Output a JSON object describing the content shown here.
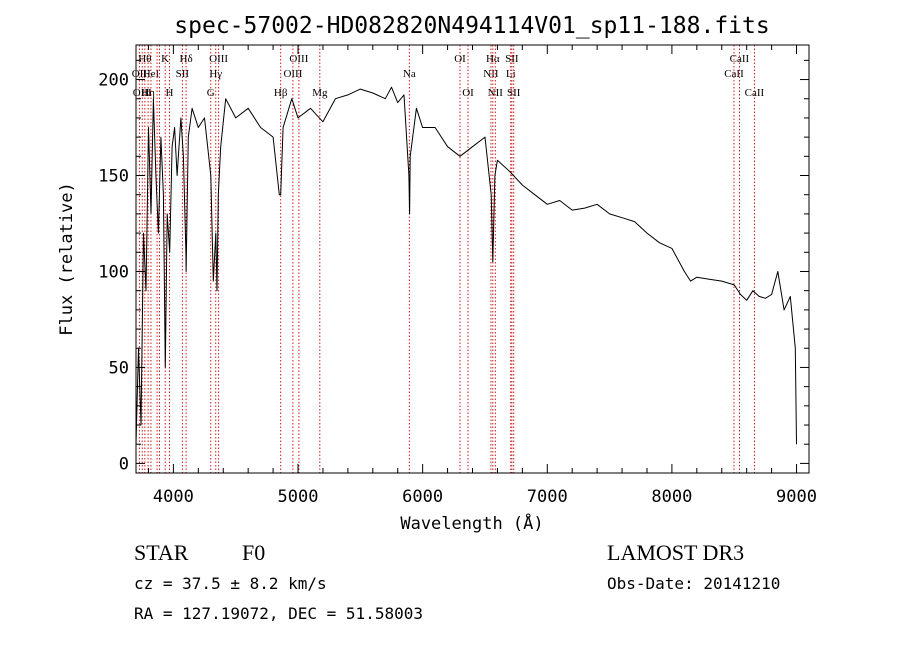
{
  "chart_data": {
    "type": "line",
    "title": "spec-57002-HD082820N494114V01_sp11-188.fits",
    "xlabel": "Wavelength (Å)",
    "ylabel": "Flux (relative)",
    "xlim": [
      3700,
      9100
    ],
    "ylim": [
      -5,
      218
    ],
    "xticks": [
      4000,
      5000,
      6000,
      7000,
      8000,
      9000
    ],
    "yticks": [
      0,
      50,
      100,
      150,
      200
    ],
    "grid": false,
    "line_color": "#000000",
    "marker_color": "#cc0000",
    "series": [
      {
        "x": [
          3700,
          3720,
          3740,
          3760,
          3780,
          3800,
          3820,
          3840,
          3860,
          3880,
          3900,
          3920,
          3935,
          3950,
          3970,
          3990,
          4010,
          4030,
          4060,
          4080,
          4100,
          4102,
          4120,
          4150,
          4200,
          4250,
          4300,
          4320,
          4340,
          4350,
          4360,
          4380,
          4420,
          4500,
          4600,
          4700,
          4800,
          4850,
          4861,
          4880,
          4950,
          5000,
          5100,
          5200,
          5300,
          5400,
          5500,
          5600,
          5700,
          5750,
          5800,
          5850,
          5890,
          5895,
          5900,
          5950,
          6000,
          6100,
          6200,
          6300,
          6400,
          6500,
          6550,
          6563,
          6580,
          6600,
          6700,
          6800,
          6900,
          7000,
          7100,
          7200,
          7300,
          7400,
          7500,
          7600,
          7700,
          7800,
          7900,
          8000,
          8100,
          8150,
          8200,
          8300,
          8400,
          8500,
          8550,
          8600,
          8650,
          8700,
          8750,
          8800,
          8850,
          8900,
          8950,
          8990,
          9000
        ],
        "y": [
          10,
          60,
          20,
          120,
          90,
          175,
          130,
          190,
          150,
          120,
          170,
          140,
          50,
          130,
          110,
          165,
          175,
          150,
          180,
          160,
          110,
          100,
          170,
          185,
          175,
          180,
          150,
          95,
          120,
          90,
          140,
          165,
          190,
          180,
          185,
          175,
          170,
          140,
          140,
          175,
          190,
          180,
          185,
          178,
          190,
          192,
          195,
          193,
          190,
          196,
          188,
          192,
          150,
          130,
          160,
          185,
          175,
          175,
          165,
          160,
          165,
          170,
          140,
          105,
          150,
          158,
          152,
          145,
          140,
          135,
          137,
          132,
          133,
          135,
          130,
          128,
          126,
          120,
          115,
          112,
          100,
          95,
          97,
          96,
          95,
          93,
          88,
          85,
          90,
          87,
          86,
          88,
          100,
          80,
          87,
          60,
          10
        ]
      }
    ],
    "line_markers": [
      {
        "x": 3727,
        "label": "OII",
        "row": 2
      },
      {
        "x": 3750,
        "label": "OIII",
        "row": 3
      },
      {
        "x": 3771,
        "label": "Hθ",
        "row": 1
      },
      {
        "x": 3797,
        "label": "Hη",
        "row": 3
      },
      {
        "x": 3820,
        "label": "HeI",
        "row": 2
      },
      {
        "x": 3869,
        "label": "",
        "row": 0
      },
      {
        "x": 3889,
        "label": "",
        "row": 0
      },
      {
        "x": 3934,
        "label": "K",
        "row": 1
      },
      {
        "x": 3969,
        "label": "H",
        "row": 3
      },
      {
        "x": 4072,
        "label": "SII",
        "row": 2
      },
      {
        "x": 4102,
        "label": "Hδ",
        "row": 1
      },
      {
        "x": 4300,
        "label": "G",
        "row": 3
      },
      {
        "x": 4340,
        "label": "Hγ",
        "row": 2
      },
      {
        "x": 4363,
        "label": "OIII",
        "row": 1
      },
      {
        "x": 4861,
        "label": "Hβ",
        "row": 3
      },
      {
        "x": 4959,
        "label": "OIII",
        "row": 2
      },
      {
        "x": 5007,
        "label": "OIII",
        "row": 1
      },
      {
        "x": 5175,
        "label": "Mg",
        "row": 3
      },
      {
        "x": 5893,
        "label": "Na",
        "row": 2
      },
      {
        "x": 6300,
        "label": "OI",
        "row": 1
      },
      {
        "x": 6364,
        "label": "OI",
        "row": 3
      },
      {
        "x": 6548,
        "label": "NII",
        "row": 2
      },
      {
        "x": 6563,
        "label": "Hα",
        "row": 1
      },
      {
        "x": 6583,
        "label": "NII",
        "row": 3
      },
      {
        "x": 6707,
        "label": "Li",
        "row": 2
      },
      {
        "x": 6716,
        "label": "SII",
        "row": 1
      },
      {
        "x": 6731,
        "label": "SII",
        "row": 3
      },
      {
        "x": 8498,
        "label": "CaII",
        "row": 2
      },
      {
        "x": 8542,
        "label": "CaII",
        "row": 1
      },
      {
        "x": 8662,
        "label": "CaII",
        "row": 3
      }
    ]
  },
  "info": {
    "class": "STAR",
    "subclass": "F0",
    "survey": "LAMOST DR3",
    "cz": "cz = 37.5 ± 8.2 km/s",
    "obs_date": "Obs-Date: 20141210",
    "coords": "RA = 127.19072, DEC =  51.58003"
  }
}
